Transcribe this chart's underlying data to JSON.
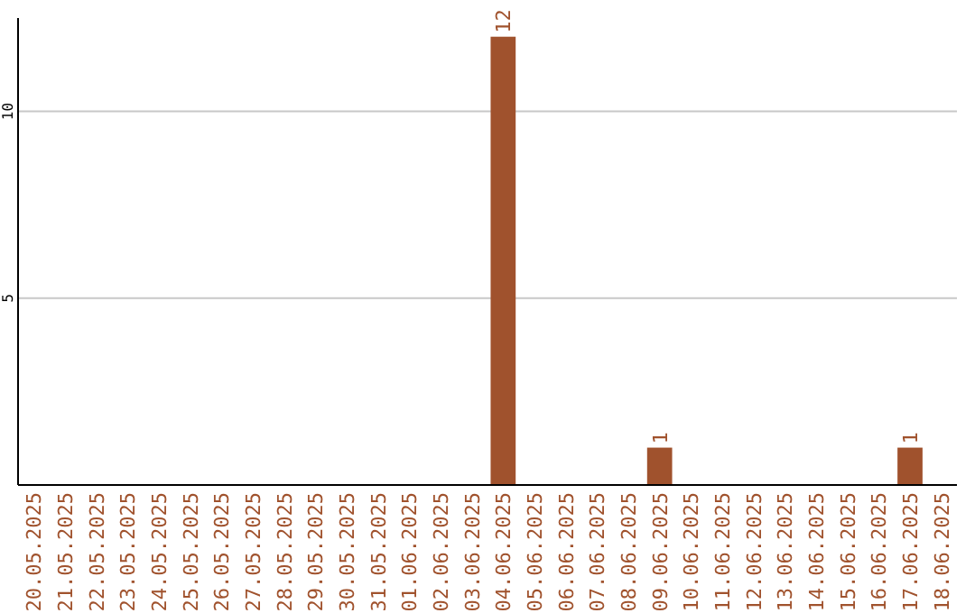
{
  "chart_data": {
    "type": "bar",
    "categories": [
      "20.05.2025",
      "21.05.2025",
      "22.05.2025",
      "23.05.2025",
      "24.05.2025",
      "25.05.2025",
      "26.05.2025",
      "27.05.2025",
      "28.05.2025",
      "29.05.2025",
      "30.05.2025",
      "31.05.2025",
      "01.06.2025",
      "02.06.2025",
      "03.06.2025",
      "04.06.2025",
      "05.06.2025",
      "06.06.2025",
      "07.06.2025",
      "08.06.2025",
      "09.06.2025",
      "10.06.2025",
      "11.06.2025",
      "12.06.2025",
      "13.06.2025",
      "14.06.2025",
      "15.06.2025",
      "16.06.2025",
      "17.06.2025",
      "18.06.2025"
    ],
    "values": [
      0,
      0,
      0,
      0,
      0,
      0,
      0,
      0,
      0,
      0,
      0,
      0,
      0,
      0,
      0,
      12,
      0,
      0,
      0,
      0,
      1,
      0,
      0,
      0,
      0,
      0,
      0,
      0,
      1,
      0
    ],
    "value_labels": [
      null,
      null,
      null,
      null,
      null,
      null,
      null,
      null,
      null,
      null,
      null,
      null,
      null,
      null,
      null,
      "12",
      null,
      null,
      null,
      null,
      "1",
      null,
      null,
      null,
      null,
      null,
      null,
      null,
      "1",
      null
    ],
    "color": "#a0522d",
    "ylim": [
      0,
      12.5
    ],
    "yticks": [
      5,
      10
    ],
    "grid": "y"
  }
}
